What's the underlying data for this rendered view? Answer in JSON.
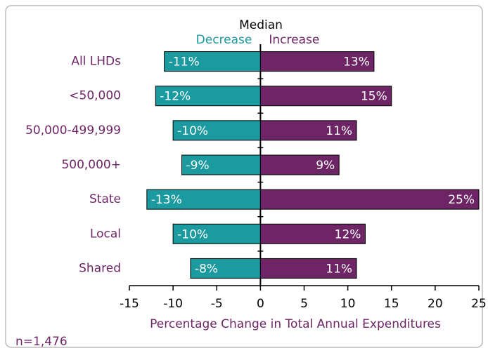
{
  "chart_data": {
    "type": "bar",
    "orientation": "horizontal",
    "legend_title": "Median",
    "categories": [
      "All LHDs",
      "<50,000",
      "50,000-499,999",
      "500,000+",
      "State",
      "Local",
      "Shared"
    ],
    "series": [
      {
        "name": "Decrease",
        "color": "#1b9aa0",
        "values": [
          -11,
          -12,
          -10,
          -9,
          -13,
          -10,
          -8
        ],
        "value_labels": [
          "-11%",
          "-12%",
          "-10%",
          "-9%",
          "-13%",
          "-10%",
          "-8%"
        ]
      },
      {
        "name": "Increase",
        "color": "#6e2566",
        "values": [
          13,
          15,
          11,
          9,
          25,
          12,
          11
        ],
        "value_labels": [
          "13%",
          "15%",
          "11%",
          "9%",
          "25%",
          "12%",
          "11%"
        ]
      }
    ],
    "xlim": [
      -15,
      25
    ],
    "xticks": [
      -15,
      -10,
      -5,
      0,
      5,
      10,
      15,
      20,
      25
    ],
    "xlabel": "Percentage Change in Total Annual Expenditures",
    "note": "n=1,476",
    "category_color": "#6e2566"
  }
}
